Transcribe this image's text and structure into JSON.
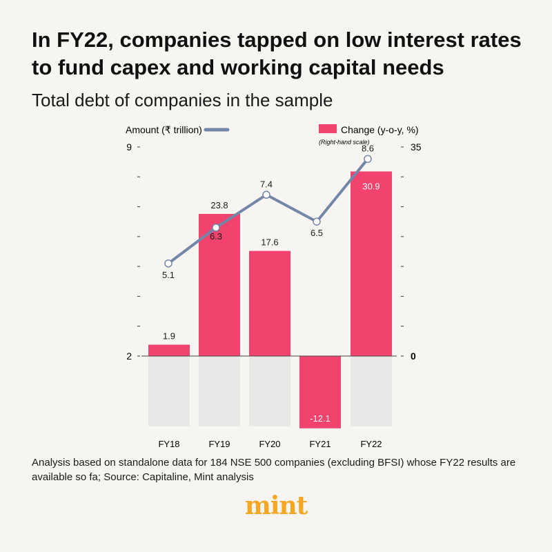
{
  "title": "In FY22, companies tapped on low interest rates to fund capex and working capital needs",
  "subtitle": "Total debt of companies in the sample",
  "footnote": "Analysis based on standalone data for 184 NSE 500 companies (excluding BFSI) whose FY22 results are available so fa; Source: Capitaline, Mint analysis",
  "brand": "mint",
  "colors": {
    "bar": "#f2426e",
    "line": "#7486a8",
    "shadow": "#e9e8e6",
    "axis": "#333333",
    "background": "#f6f5f1"
  },
  "chart_data": {
    "type": "bar+line",
    "categories": [
      "FY18",
      "FY19",
      "FY20",
      "FY21",
      "FY22"
    ],
    "legend": {
      "line_label": "Amount (₹ trillion)",
      "bar_label": "Change (y-o-y, %)",
      "bar_note": "(Right-hand scale)"
    },
    "left_axis": {
      "ylim": [
        2,
        9
      ],
      "tick_labels": [
        "9",
        "2"
      ]
    },
    "right_axis": {
      "ylim": [
        -12.1,
        35
      ],
      "tick_labels": [
        "35",
        "0"
      ]
    },
    "series": [
      {
        "name": "Change (y-o-y, %)",
        "type": "bar",
        "axis": "right",
        "values": [
          1.9,
          23.8,
          17.6,
          -12.1,
          30.9
        ],
        "labels": [
          "1.9",
          "23.8",
          "17.6",
          "-12.1",
          "30.9"
        ]
      },
      {
        "name": "Amount (₹ trillion)",
        "type": "line",
        "axis": "left",
        "values": [
          5.1,
          6.3,
          7.4,
          6.5,
          8.6
        ],
        "labels": [
          "5.1",
          "6.3",
          "7.4",
          "6.5",
          "8.6"
        ]
      }
    ]
  }
}
